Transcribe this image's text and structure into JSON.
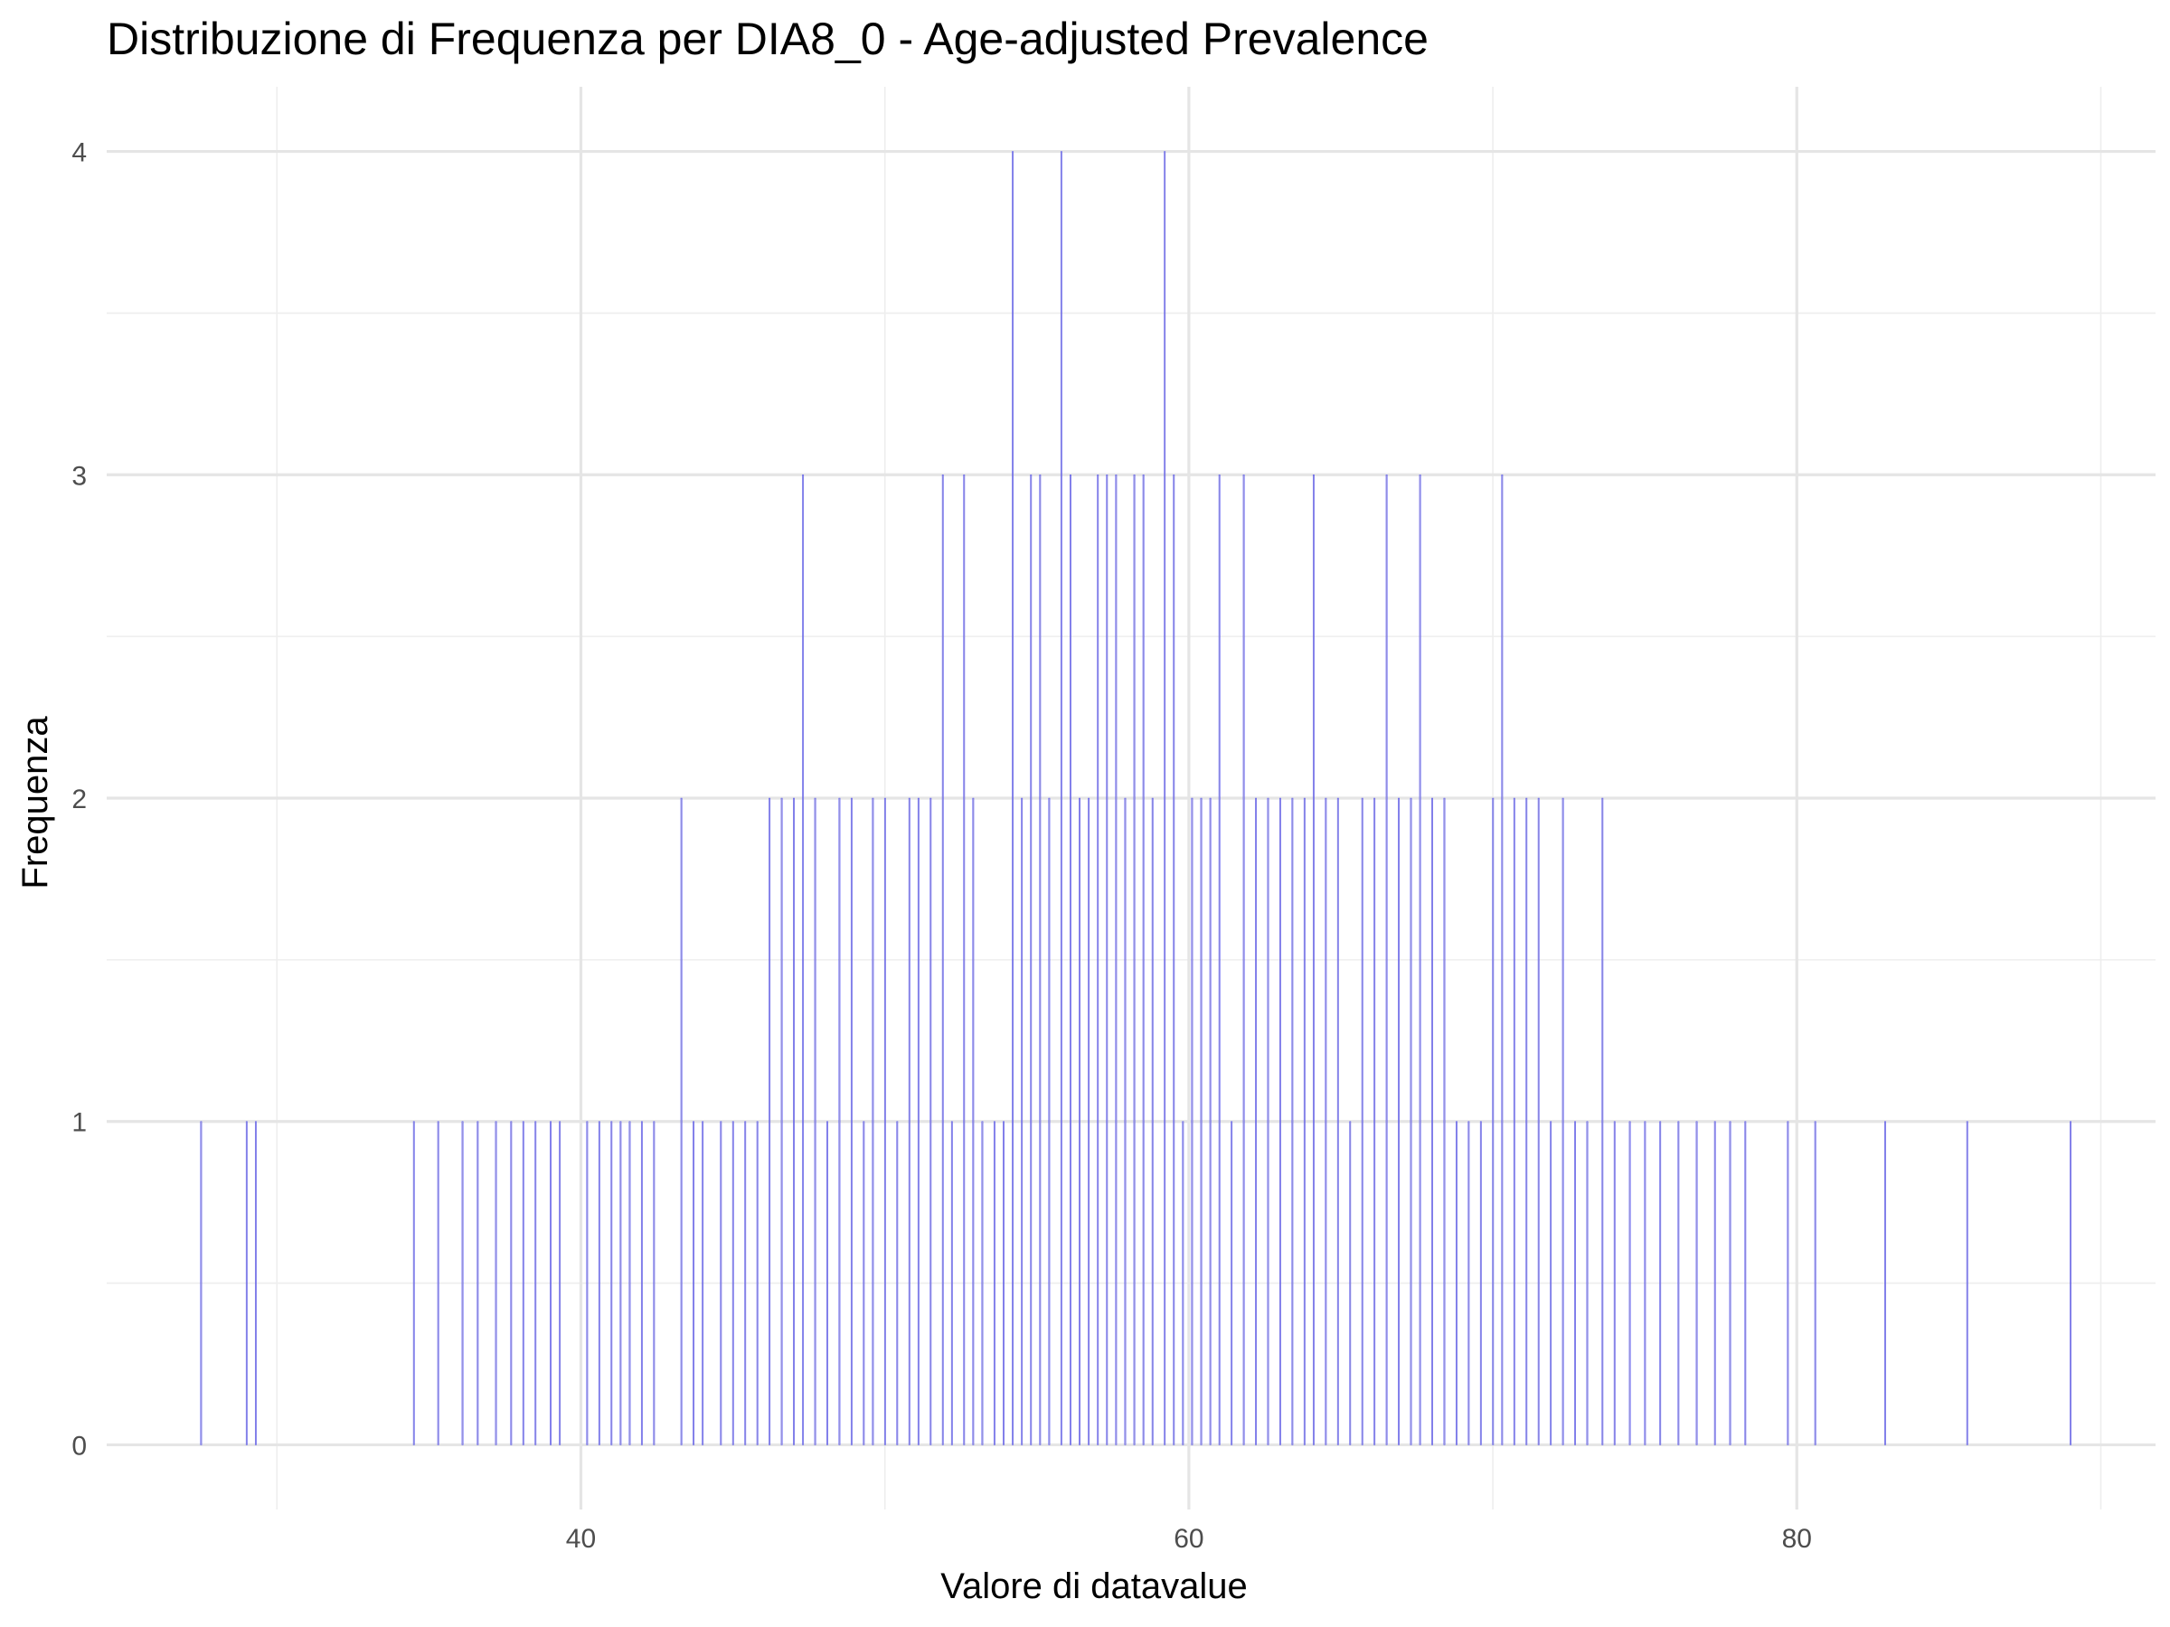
{
  "chart_data": {
    "type": "bar",
    "title": "Distribuzione di Frequenza per DIA8_0 - Age-adjusted Prevalence",
    "xlabel": "Valore di datavalue",
    "ylabel": "Frequenza",
    "xlim": [
      24.4,
      91.8
    ],
    "ylim": [
      -0.2,
      4.2
    ],
    "x_ticks": [
      40,
      60,
      80
    ],
    "y_ticks": [
      0,
      1,
      2,
      3,
      4
    ],
    "grid": true,
    "legend": "none",
    "colors": {
      "bar_fill": "#a09cdb",
      "bar_outline": "#0000ff"
    },
    "bars": [
      {
        "x": 27.5,
        "count": 1
      },
      {
        "x": 29.0,
        "count": 1
      },
      {
        "x": 29.3,
        "count": 1
      },
      {
        "x": 34.5,
        "count": 1
      },
      {
        "x": 35.3,
        "count": 1
      },
      {
        "x": 36.1,
        "count": 1
      },
      {
        "x": 36.6,
        "count": 1
      },
      {
        "x": 37.2,
        "count": 1
      },
      {
        "x": 37.7,
        "count": 1
      },
      {
        "x": 38.1,
        "count": 1
      },
      {
        "x": 38.5,
        "count": 1
      },
      {
        "x": 39.0,
        "count": 1
      },
      {
        "x": 39.3,
        "count": 1
      },
      {
        "x": 40.2,
        "count": 1
      },
      {
        "x": 40.6,
        "count": 1
      },
      {
        "x": 41.0,
        "count": 1
      },
      {
        "x": 41.3,
        "count": 1
      },
      {
        "x": 41.6,
        "count": 1
      },
      {
        "x": 42.0,
        "count": 1
      },
      {
        "x": 42.4,
        "count": 1
      },
      {
        "x": 43.3,
        "count": 2
      },
      {
        "x": 43.7,
        "count": 1
      },
      {
        "x": 44.0,
        "count": 1
      },
      {
        "x": 44.6,
        "count": 1
      },
      {
        "x": 45.0,
        "count": 1
      },
      {
        "x": 45.4,
        "count": 1
      },
      {
        "x": 45.8,
        "count": 1
      },
      {
        "x": 46.2,
        "count": 2
      },
      {
        "x": 46.6,
        "count": 2
      },
      {
        "x": 47.0,
        "count": 2
      },
      {
        "x": 47.3,
        "count": 3
      },
      {
        "x": 47.7,
        "count": 2
      },
      {
        "x": 48.1,
        "count": 1
      },
      {
        "x": 48.5,
        "count": 2
      },
      {
        "x": 48.9,
        "count": 2
      },
      {
        "x": 49.3,
        "count": 1
      },
      {
        "x": 49.6,
        "count": 2
      },
      {
        "x": 50.0,
        "count": 2
      },
      {
        "x": 50.4,
        "count": 1
      },
      {
        "x": 50.8,
        "count": 2
      },
      {
        "x": 51.1,
        "count": 2
      },
      {
        "x": 51.5,
        "count": 2
      },
      {
        "x": 51.9,
        "count": 3
      },
      {
        "x": 52.2,
        "count": 1
      },
      {
        "x": 52.6,
        "count": 3
      },
      {
        "x": 52.9,
        "count": 2
      },
      {
        "x": 53.2,
        "count": 1
      },
      {
        "x": 53.6,
        "count": 1
      },
      {
        "x": 53.9,
        "count": 1
      },
      {
        "x": 54.2,
        "count": 4
      },
      {
        "x": 54.5,
        "count": 2
      },
      {
        "x": 54.8,
        "count": 3
      },
      {
        "x": 55.1,
        "count": 3
      },
      {
        "x": 55.4,
        "count": 2
      },
      {
        "x": 55.8,
        "count": 4
      },
      {
        "x": 56.1,
        "count": 3
      },
      {
        "x": 56.4,
        "count": 2
      },
      {
        "x": 56.7,
        "count": 2
      },
      {
        "x": 57.0,
        "count": 3
      },
      {
        "x": 57.3,
        "count": 3
      },
      {
        "x": 57.6,
        "count": 3
      },
      {
        "x": 57.9,
        "count": 2
      },
      {
        "x": 58.2,
        "count": 3
      },
      {
        "x": 58.5,
        "count": 3
      },
      {
        "x": 58.8,
        "count": 2
      },
      {
        "x": 59.2,
        "count": 4
      },
      {
        "x": 59.5,
        "count": 3
      },
      {
        "x": 59.8,
        "count": 1
      },
      {
        "x": 60.1,
        "count": 2
      },
      {
        "x": 60.4,
        "count": 2
      },
      {
        "x": 60.7,
        "count": 2
      },
      {
        "x": 61.0,
        "count": 3
      },
      {
        "x": 61.4,
        "count": 1
      },
      {
        "x": 61.8,
        "count": 3
      },
      {
        "x": 62.2,
        "count": 2
      },
      {
        "x": 62.6,
        "count": 2
      },
      {
        "x": 63.0,
        "count": 2
      },
      {
        "x": 63.4,
        "count": 2
      },
      {
        "x": 63.8,
        "count": 2
      },
      {
        "x": 64.1,
        "count": 3
      },
      {
        "x": 64.5,
        "count": 2
      },
      {
        "x": 64.9,
        "count": 2
      },
      {
        "x": 65.3,
        "count": 1
      },
      {
        "x": 65.7,
        "count": 2
      },
      {
        "x": 66.1,
        "count": 2
      },
      {
        "x": 66.5,
        "count": 3
      },
      {
        "x": 66.9,
        "count": 2
      },
      {
        "x": 67.3,
        "count": 2
      },
      {
        "x": 67.6,
        "count": 3
      },
      {
        "x": 68.0,
        "count": 2
      },
      {
        "x": 68.4,
        "count": 2
      },
      {
        "x": 68.8,
        "count": 1
      },
      {
        "x": 69.2,
        "count": 1
      },
      {
        "x": 69.6,
        "count": 1
      },
      {
        "x": 70.0,
        "count": 2
      },
      {
        "x": 70.3,
        "count": 3
      },
      {
        "x": 70.7,
        "count": 2
      },
      {
        "x": 71.1,
        "count": 2
      },
      {
        "x": 71.5,
        "count": 2
      },
      {
        "x": 71.9,
        "count": 1
      },
      {
        "x": 72.3,
        "count": 2
      },
      {
        "x": 72.7,
        "count": 1
      },
      {
        "x": 73.1,
        "count": 1
      },
      {
        "x": 73.6,
        "count": 2
      },
      {
        "x": 74.0,
        "count": 1
      },
      {
        "x": 74.5,
        "count": 1
      },
      {
        "x": 75.0,
        "count": 1
      },
      {
        "x": 75.5,
        "count": 1
      },
      {
        "x": 76.1,
        "count": 1
      },
      {
        "x": 76.7,
        "count": 1
      },
      {
        "x": 77.3,
        "count": 1
      },
      {
        "x": 77.8,
        "count": 1
      },
      {
        "x": 78.3,
        "count": 1
      },
      {
        "x": 79.7,
        "count": 1
      },
      {
        "x": 80.6,
        "count": 1
      },
      {
        "x": 82.9,
        "count": 1
      },
      {
        "x": 85.6,
        "count": 1
      },
      {
        "x": 89.0,
        "count": 1
      }
    ]
  }
}
